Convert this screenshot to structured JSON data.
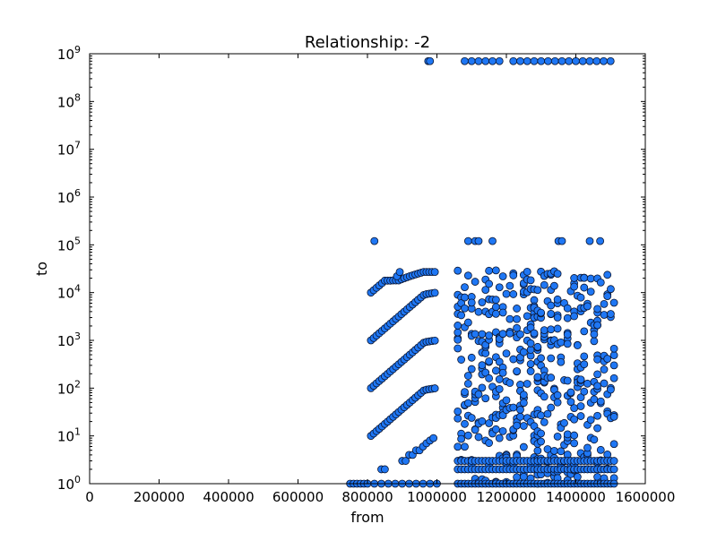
{
  "chart_data": {
    "type": "scatter",
    "title": "Relationship: -2",
    "xlabel": "from",
    "ylabel": "to",
    "xlim": [
      0,
      1600000
    ],
    "ylim": [
      1,
      1000000000
    ],
    "yscale": "log",
    "grid": false,
    "x_ticks": [
      0,
      200000,
      400000,
      600000,
      800000,
      1000000,
      1200000,
      1400000,
      1600000
    ],
    "x_tick_labels": [
      "0",
      "200000",
      "400000",
      "600000",
      "800000",
      "1000000",
      "1200000",
      "1400000",
      "1600000"
    ],
    "y_ticks": [
      1,
      10,
      100,
      1000,
      10000,
      100000,
      1000000,
      10000000,
      100000000,
      1000000000
    ],
    "y_tick_exponents": [
      "0",
      "1",
      "2",
      "3",
      "4",
      "5",
      "6",
      "7",
      "8",
      "9"
    ],
    "y_tick_base": "10",
    "marker_color": "#1f77f4",
    "marker_edge_color": "#0b1530",
    "series": [
      {
        "x": [
          750000,
          760000,
          770000,
          780000,
          790000,
          800000,
          820000,
          840000,
          860000,
          880000,
          900000,
          920000,
          940000,
          960000,
          980000,
          1000000,
          810000,
          818000,
          826000,
          834000,
          842000,
          850000,
          858000,
          866000,
          874000,
          882000,
          890000,
          898000,
          906000,
          914000,
          922000,
          930000,
          938000,
          946000,
          954000,
          962000,
          970000,
          978000,
          986000,
          994000,
          810000,
          818000,
          826000,
          834000,
          842000,
          850000,
          858000,
          866000,
          874000,
          882000,
          890000,
          898000,
          906000,
          914000,
          922000,
          930000,
          938000,
          946000,
          954000,
          962000,
          970000,
          978000,
          986000,
          994000,
          810000,
          818000,
          826000,
          834000,
          842000,
          850000,
          858000,
          866000,
          874000,
          882000,
          890000,
          898000,
          906000,
          914000,
          922000,
          930000,
          938000,
          946000,
          954000,
          962000,
          970000,
          978000,
          986000,
          994000,
          810000,
          818000,
          826000,
          834000,
          842000,
          850000,
          858000,
          866000,
          874000,
          882000,
          890000,
          898000,
          906000,
          914000,
          922000,
          930000,
          938000,
          946000,
          954000,
          962000,
          970000,
          978000,
          986000,
          994000,
          840000,
          850000,
          900000,
          910000,
          920000,
          930000,
          940000,
          950000,
          960000,
          970000,
          980000,
          990000,
          820000,
          1090000,
          1110000,
          1120000,
          1160000,
          1350000,
          1360000,
          1440000,
          1470000,
          885000,
          893000,
          975000,
          980000,
          1080000,
          1100000,
          1120000,
          1140000,
          1160000,
          1180000,
          1220000,
          1240000,
          1260000,
          1280000,
          1300000,
          1320000,
          1340000,
          1360000,
          1380000,
          1400000,
          1420000,
          1440000,
          1460000,
          1480000,
          1500000
        ],
        "y": [
          1,
          1,
          1,
          1,
          1,
          1,
          1,
          1,
          1,
          1,
          1,
          1,
          1,
          1,
          1,
          1,
          10,
          11.2,
          12.6,
          14.1,
          15.8,
          17.8,
          19.9,
          22.4,
          25.1,
          28.2,
          31.6,
          35.5,
          39.8,
          44.7,
          50.1,
          56.2,
          63.1,
          70.8,
          79.4,
          89.1,
          93,
          95,
          97,
          99,
          100,
          112,
          126,
          141,
          158,
          178,
          199,
          224,
          251,
          282,
          316,
          355,
          398,
          447,
          501,
          562,
          631,
          708,
          794,
          891,
          930,
          950,
          970,
          990,
          1000,
          1120,
          1260,
          1410,
          1580,
          1780,
          1990,
          2240,
          2510,
          2820,
          3160,
          3550,
          3980,
          4470,
          5010,
          5620,
          6310,
          7080,
          7940,
          8910,
          9300,
          9500,
          9700,
          9900,
          10000,
          11200,
          12600,
          14100,
          15800,
          17800,
          17800,
          17800,
          18000,
          18000,
          18000,
          19000,
          20000,
          21000,
          22000,
          23000,
          24000,
          25000,
          26000,
          27000,
          27000,
          27000,
          27000,
          27000,
          2,
          2,
          3,
          3,
          4,
          4,
          5,
          5,
          6,
          7,
          8,
          9,
          120000,
          120000,
          120000,
          120000,
          120000,
          120000,
          120000,
          120000,
          120000,
          22000,
          27000,
          700000000,
          700000000,
          700000000,
          700000000,
          700000000,
          700000000,
          700000000,
          700000000,
          700000000,
          700000000,
          700000000,
          700000000,
          700000000,
          700000000,
          700000000,
          700000000,
          700000000,
          700000000,
          700000000,
          700000000,
          700000000,
          700000000,
          700000000
        ]
      }
    ],
    "dense_bands": [
      {
        "x_range": [
          1060000,
          1190000
        ],
        "y_range": [
          1,
          30000
        ],
        "diagonal_start_y": 10
      },
      {
        "x_range": [
          1200000,
          1290000
        ],
        "y_range": [
          1,
          30000
        ],
        "diagonal_start_y": 10
      },
      {
        "x_range": [
          1290000,
          1510000
        ],
        "y_range": [
          1,
          30000
        ],
        "diagonal_start_y": 0
      }
    ]
  }
}
